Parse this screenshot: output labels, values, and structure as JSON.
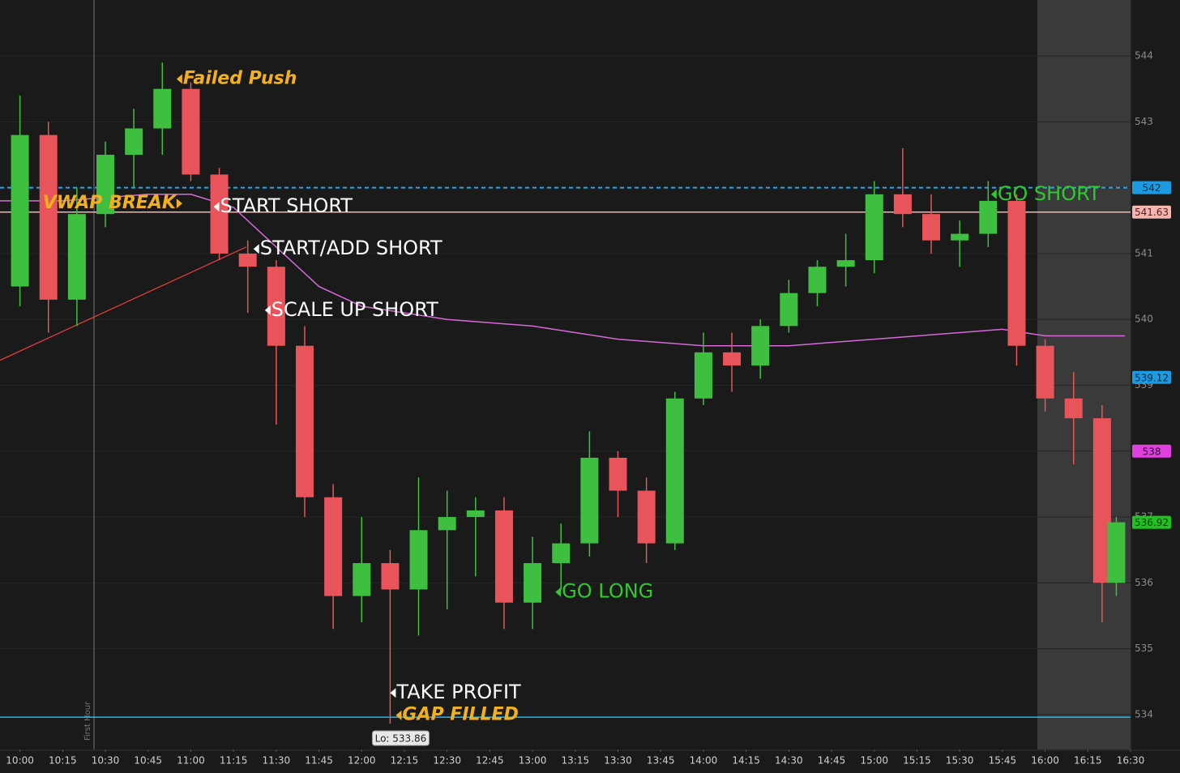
{
  "chart_data": {
    "type": "candlestick",
    "up_color": "#3fbf3f",
    "down_color": "#e8545a",
    "xlim": [
      593,
      990
    ],
    "ylim": [
      533.47,
      544.85
    ],
    "yticks": [
      534,
      535,
      536,
      537,
      538,
      539,
      540,
      541,
      542,
      543,
      544
    ],
    "xticks": [
      {
        "value": 600,
        "label": "10:00"
      },
      {
        "value": 615,
        "label": "10:15"
      },
      {
        "value": 630,
        "label": "10:30"
      },
      {
        "value": 645,
        "label": "10:45"
      },
      {
        "value": 660,
        "label": "11:00"
      },
      {
        "value": 675,
        "label": "11:15"
      },
      {
        "value": 690,
        "label": "11:30"
      },
      {
        "value": 705,
        "label": "11:45"
      },
      {
        "value": 720,
        "label": "12:00"
      },
      {
        "value": 735,
        "label": "12:15"
      },
      {
        "value": 750,
        "label": "12:30"
      },
      {
        "value": 765,
        "label": "12:45"
      },
      {
        "value": 780,
        "label": "13:00"
      },
      {
        "value": 795,
        "label": "13:15"
      },
      {
        "value": 810,
        "label": "13:30"
      },
      {
        "value": 825,
        "label": "13:45"
      },
      {
        "value": 840,
        "label": "14:00"
      },
      {
        "value": 855,
        "label": "14:15"
      },
      {
        "value": 870,
        "label": "14:30"
      },
      {
        "value": 885,
        "label": "14:45"
      },
      {
        "value": 900,
        "label": "15:00"
      },
      {
        "value": 915,
        "label": "15:15"
      },
      {
        "value": 930,
        "label": "15:30"
      },
      {
        "value": 945,
        "label": "15:45"
      },
      {
        "value": 960,
        "label": "16:00"
      },
      {
        "value": 975,
        "label": "16:15"
      },
      {
        "value": 990,
        "label": "16:30"
      }
    ],
    "grid": true,
    "x": [
      600,
      610,
      620,
      630,
      640,
      650,
      660,
      670,
      680,
      690,
      700,
      710,
      720,
      730,
      740,
      750,
      760,
      770,
      780,
      790,
      800,
      810,
      820,
      830,
      840,
      850,
      860,
      870,
      880,
      890,
      900,
      910,
      920,
      930,
      940,
      950,
      960,
      970,
      980,
      985
    ],
    "open": [
      540.5,
      542.8,
      540.3,
      541.6,
      542.5,
      542.9,
      543.5,
      542.2,
      541.0,
      540.8,
      539.6,
      537.3,
      535.8,
      536.3,
      535.9,
      536.8,
      537.0,
      537.1,
      535.7,
      536.3,
      536.6,
      537.9,
      537.4,
      536.6,
      538.8,
      539.5,
      539.3,
      539.9,
      540.4,
      540.8,
      540.9,
      541.9,
      541.6,
      541.2,
      541.3,
      541.8,
      539.6,
      538.8,
      538.5,
      536.0
    ],
    "high": [
      543.4,
      543.0,
      542.0,
      542.7,
      543.2,
      543.9,
      543.6,
      542.3,
      541.2,
      540.9,
      539.9,
      537.5,
      537.0,
      536.5,
      537.6,
      537.4,
      537.3,
      537.3,
      536.7,
      536.9,
      538.3,
      538.0,
      537.6,
      538.9,
      539.8,
      539.8,
      540.0,
      540.6,
      540.9,
      541.3,
      542.1,
      542.6,
      541.9,
      541.5,
      542.1,
      541.9,
      539.7,
      539.2,
      538.7,
      537.0
    ],
    "low": [
      540.2,
      539.8,
      539.9,
      541.4,
      542.0,
      542.5,
      542.1,
      540.9,
      540.1,
      538.4,
      537.0,
      535.3,
      535.4,
      533.86,
      535.2,
      535.6,
      536.1,
      535.3,
      535.3,
      535.9,
      536.4,
      537.0,
      536.3,
      536.5,
      538.7,
      538.9,
      539.1,
      539.8,
      540.2,
      540.5,
      540.7,
      541.4,
      541.0,
      540.8,
      541.1,
      539.3,
      538.6,
      537.8,
      535.4,
      535.8
    ],
    "close": [
      542.8,
      540.3,
      541.6,
      542.5,
      542.9,
      543.5,
      542.2,
      541.0,
      540.8,
      539.6,
      537.3,
      535.8,
      536.3,
      535.9,
      536.8,
      537.0,
      537.1,
      535.7,
      536.3,
      536.6,
      537.9,
      537.4,
      536.6,
      538.8,
      539.5,
      539.3,
      539.9,
      540.4,
      540.8,
      540.9,
      541.9,
      541.6,
      541.2,
      541.3,
      541.8,
      539.6,
      538.8,
      538.5,
      536.0,
      536.92
    ],
    "vwap": {
      "color": "#d66ad6",
      "x": [
        593,
        615,
        645,
        660,
        675,
        690,
        705,
        720,
        750,
        780,
        810,
        840,
        870,
        900,
        930,
        945,
        960,
        988
      ],
      "values": [
        541.8,
        541.8,
        541.9,
        541.9,
        541.7,
        541.1,
        540.5,
        540.2,
        540.0,
        539.9,
        539.7,
        539.6,
        539.6,
        539.7,
        539.8,
        539.85,
        539.75,
        539.75
      ]
    },
    "trendline": {
      "color": "#e03c3c",
      "x": [
        593,
        679.5
      ],
      "values": [
        539.38,
        541.1
      ]
    },
    "levels": [
      {
        "value": 542,
        "color": "#2aa6e8",
        "dashed": true
      },
      {
        "value": 541.63,
        "color": "#f4b6b0",
        "dashed": false
      },
      {
        "value": 533.96,
        "color": "#29b6e8",
        "dashed": false
      }
    ],
    "price_tags": [
      {
        "value": 542,
        "color": "#1e9be0",
        "text_color": "#0a2a40"
      },
      {
        "value": 541.63,
        "color": "#f4b6b0",
        "text_color": "#5a1a1a"
      },
      {
        "value": 539.12,
        "color": "#1e9be0",
        "text_color": "#0a2a40"
      },
      {
        "value": 538,
        "color": "#e040e0",
        "text_color": "#3a003a"
      },
      {
        "value": 536.92,
        "color": "#1fc21f",
        "text_color": "#003a00"
      }
    ],
    "marker": {
      "x": 626,
      "label": "First Hour"
    },
    "low_label": {
      "x": 734,
      "value": 533.86,
      "text": "Lo: 533.86"
    },
    "annotations": [
      {
        "text": "Failed Push",
        "x": 655,
        "y": 543.65,
        "color": "#f2b01e",
        "emphasis": true,
        "pointer": "left"
      },
      {
        "text": "VWAP BREAK",
        "x": 657,
        "y": 541.76,
        "color": "#f2b01e",
        "emphasis": true,
        "pointer": "right"
      },
      {
        "text": "START SHORT",
        "x": 668,
        "y": 541.71,
        "color": "#ffffff",
        "emphasis": false,
        "pointer": "left"
      },
      {
        "text": "START/ADD SHORT",
        "x": 682,
        "y": 541.07,
        "color": "#ffffff",
        "emphasis": false,
        "pointer": "left"
      },
      {
        "text": "SCALE UP SHORT",
        "x": 686,
        "y": 540.14,
        "color": "#ffffff",
        "emphasis": false,
        "pointer": "left"
      },
      {
        "text": "GO LONG",
        "x": 788,
        "y": 535.86,
        "color": "#2fc92f",
        "emphasis": false,
        "pointer": "left"
      },
      {
        "text": "TAKE PROFIT",
        "x": 730,
        "y": 534.33,
        "color": "#ffffff",
        "emphasis": false,
        "pointer": "left"
      },
      {
        "text": "GAP FILLED",
        "x": 732,
        "y": 533.99,
        "color": "#f2b01e",
        "emphasis": true,
        "pointer": "left"
      },
      {
        "text": "GO SHORT",
        "x": 941,
        "y": 541.9,
        "color": "#2fc92f",
        "emphasis": false,
        "pointer": "left"
      }
    ]
  }
}
